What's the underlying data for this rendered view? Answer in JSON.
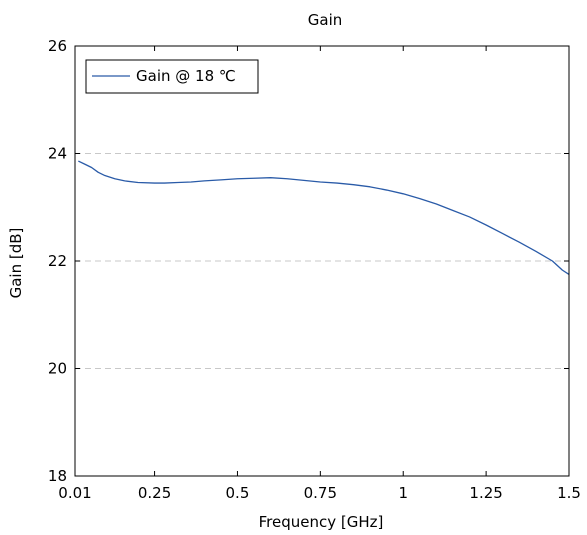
{
  "chart_data": {
    "type": "line",
    "title": "Gain",
    "xlabel": "Frequency [GHz]",
    "ylabel": "Gain [dB]",
    "xlim": [
      0.01,
      1.5
    ],
    "ylim": [
      18,
      26
    ],
    "xticks": [
      0.01,
      0.25,
      0.5,
      0.75,
      1,
      1.25,
      1.5
    ],
    "xtick_labels": [
      "0.01",
      "0.25",
      "0.5",
      "0.75",
      "1",
      "1.25",
      "1.5"
    ],
    "yticks": [
      18,
      20,
      22,
      24,
      26
    ],
    "ytick_labels": [
      "18",
      "20",
      "22",
      "24",
      "26"
    ],
    "grid": "horizontal dashed at major y ticks",
    "legend_position": "top-left",
    "line_color": "#2a5ba8",
    "series": [
      {
        "name": "Gain @ 18 ℃",
        "x": [
          0.02,
          0.04,
          0.06,
          0.08,
          0.1,
          0.13,
          0.16,
          0.2,
          0.25,
          0.28,
          0.32,
          0.36,
          0.4,
          0.45,
          0.5,
          0.55,
          0.6,
          0.65,
          0.7,
          0.75,
          0.8,
          0.85,
          0.9,
          0.95,
          1.0,
          1.05,
          1.1,
          1.15,
          1.2,
          1.25,
          1.3,
          1.35,
          1.4,
          1.45,
          1.48,
          1.5
        ],
        "y": [
          23.86,
          23.8,
          23.74,
          23.65,
          23.59,
          23.53,
          23.49,
          23.46,
          23.45,
          23.45,
          23.46,
          23.47,
          23.49,
          23.51,
          23.53,
          23.54,
          23.55,
          23.53,
          23.5,
          23.47,
          23.45,
          23.42,
          23.38,
          23.32,
          23.25,
          23.16,
          23.06,
          22.94,
          22.82,
          22.67,
          22.51,
          22.35,
          22.18,
          22.0,
          21.83,
          21.75
        ]
      }
    ]
  }
}
